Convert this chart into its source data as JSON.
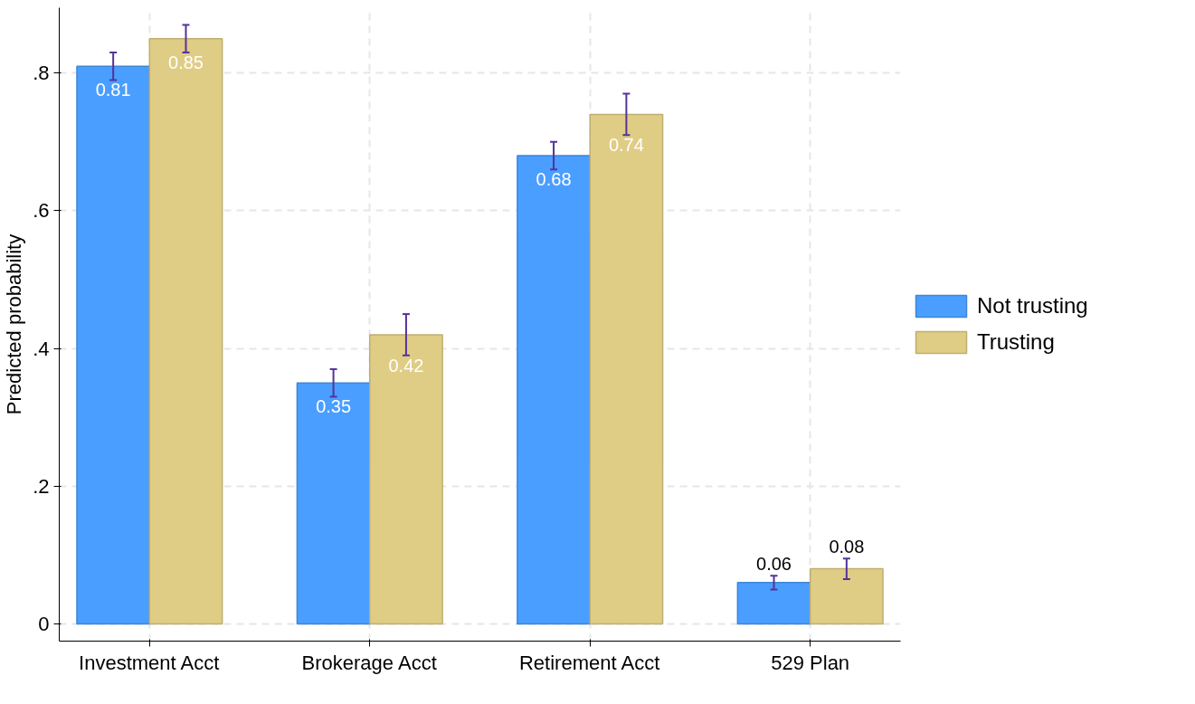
{
  "chart_data": {
    "type": "bar",
    "categories": [
      "Investment Acct",
      "Brokerage Acct",
      "Retirement Acct",
      "529 Plan"
    ],
    "series": [
      {
        "name": "Not trusting",
        "color": "#4a9eff",
        "values": [
          0.81,
          0.35,
          0.68,
          0.06
        ],
        "errors": [
          0.02,
          0.02,
          0.02,
          0.01
        ]
      },
      {
        "name": "Trusting",
        "color": "#e0cd85",
        "values": [
          0.85,
          0.42,
          0.74,
          0.08
        ],
        "errors": [
          0.02,
          0.03,
          0.03,
          0.015
        ]
      }
    ],
    "ylabel": "Predicted probability",
    "ylim": [
      -0.025,
      0.895
    ],
    "yticks": [
      {
        "value": 0,
        "label": "0"
      },
      {
        "value": 0.2,
        "label": ".2"
      },
      {
        "value": 0.4,
        "label": ".4"
      },
      {
        "value": 0.6,
        "label": ".6"
      },
      {
        "value": 0.8,
        "label": ".8"
      }
    ],
    "data_labels": true,
    "grid": true,
    "legend": "right"
  }
}
